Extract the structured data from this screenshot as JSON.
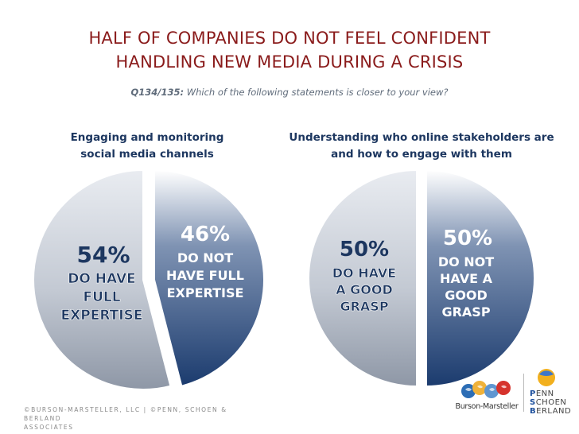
{
  "title": {
    "line1": "HALF OF COMPANIES DO NOT FEEL CONFIDENT",
    "line2": "HANDLING NEW MEDIA DURING A CRISIS"
  },
  "question": {
    "id": "Q134/135:",
    "text": "Which of the following statements is closer to your view?"
  },
  "chart_data": [
    {
      "type": "pie",
      "title": "Engaging and monitoring social media channels",
      "title_lines": [
        "Engaging and monitoring",
        "social media channels"
      ],
      "slices": [
        {
          "label": "DO HAVE FULL EXPERTISE",
          "label_lines": [
            "DO HAVE",
            "FULL",
            "EXPERTISE"
          ],
          "value": 54,
          "pct_label": "54%",
          "color": "#c2c8d2"
        },
        {
          "label": "DO NOT HAVE FULL EXPERTISE",
          "label_lines": [
            "DO NOT",
            "HAVE FULL",
            "EXPERTISE"
          ],
          "value": 46,
          "pct_label": "46%",
          "color": "#2f4f7f"
        }
      ]
    },
    {
      "type": "pie",
      "title": "Understanding who online stakeholders are and how to engage with them",
      "title_lines": [
        "Understanding who online stakeholders are",
        "and how to engage with them"
      ],
      "slices": [
        {
          "label": "DO HAVE A GOOD GRASP",
          "label_lines": [
            "DO HAVE",
            "A GOOD",
            "GRASP"
          ],
          "value": 50,
          "pct_label": "50%",
          "color": "#c2c8d2"
        },
        {
          "label": "DO NOT HAVE A GOOD GRASP",
          "label_lines": [
            "DO NOT",
            "HAVE A",
            "GOOD",
            "GRASP"
          ],
          "value": 50,
          "pct_label": "50%",
          "color": "#2f4f7f"
        }
      ]
    }
  ],
  "footer": {
    "line1": "©BURSON-MARSTELLER, LLC | ©PENN, SCHOEN & BERLAND",
    "line2": "ASSOCIATES"
  },
  "logos": {
    "bm_label": "Burson-Marsteller",
    "psb": {
      "line1_initial": "P",
      "line1_rest": "ENN",
      "line2_initial": "S",
      "line2_rest": "CHOEN",
      "line3_initial": "B",
      "line3_rest": "ERLAND"
    }
  }
}
